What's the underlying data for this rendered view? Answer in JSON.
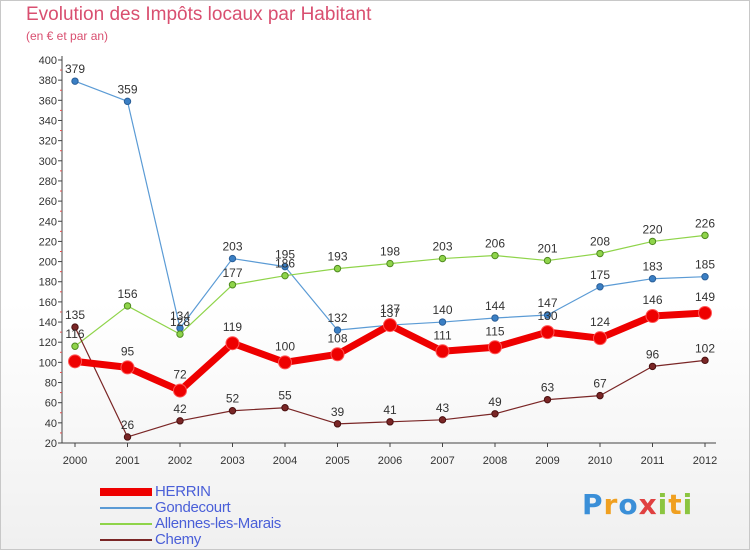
{
  "chart_data": {
    "type": "line",
    "title": "Evolution des Impôts locaux par Habitant",
    "subtitle": "(en € et par an)",
    "xlabel": "",
    "ylabel": "",
    "ylim": [
      20,
      400
    ],
    "y_ticks": [
      20,
      40,
      60,
      80,
      100,
      120,
      140,
      160,
      180,
      200,
      220,
      240,
      260,
      280,
      300,
      320,
      340,
      360,
      380,
      400
    ],
    "categories": [
      "2000",
      "2001",
      "2002",
      "2003",
      "2004",
      "2005",
      "2006",
      "2007",
      "2008",
      "2009",
      "2010",
      "2011",
      "2012"
    ],
    "series": [
      {
        "name": "Gondecourt",
        "color": "#5b9bd5",
        "values": [
          379,
          359,
          134,
          203,
          195,
          132,
          137,
          140,
          144,
          147,
          175,
          183,
          185
        ]
      },
      {
        "name": "Allennes-les-Marais",
        "color": "#8fd44a",
        "values": [
          116,
          156,
          128,
          177,
          186,
          193,
          198,
          203,
          206,
          201,
          208,
          220,
          226
        ]
      },
      {
        "name": "Chemy",
        "color": "#7a2626",
        "values": [
          135,
          26,
          42,
          52,
          55,
          39,
          41,
          43,
          49,
          63,
          67,
          96,
          102
        ]
      },
      {
        "name": "HERRIN",
        "color": "#ee0000",
        "values": [
          101,
          95,
          72,
          119,
          100,
          108,
          137,
          111,
          115,
          130,
          124,
          146,
          149
        ]
      }
    ],
    "data_labels": {
      "Gondecourt": [
        "379",
        "359",
        "134",
        "203",
        "195",
        "132",
        "137",
        "140",
        "144",
        "147",
        "175",
        "183",
        "185"
      ],
      "Allennes-les-Marais": [
        "116",
        "156",
        "128",
        "177",
        "186",
        "193",
        "198",
        "203",
        "206",
        "201",
        "208",
        "220",
        "226"
      ],
      "Chemy": [
        "135",
        "26",
        "42",
        "52",
        "55",
        "39",
        "41",
        "43",
        "49",
        "63",
        "67",
        "96",
        "102"
      ],
      "HERRIN": [
        "",
        "95",
        "72",
        "119",
        "100",
        "108",
        "137",
        "111",
        "115",
        "130",
        "124",
        "146",
        "149"
      ]
    },
    "legend": [
      "HERRIN",
      "Gondecourt",
      "Allennes-les-Marais",
      "Chemy"
    ],
    "legend_position": "bottom-left",
    "grid": false
  },
  "brand": {
    "letters": [
      "P",
      "r",
      "o",
      "x",
      "i",
      "t",
      "i"
    ],
    "colors": [
      "#3a8fd8",
      "#f0a020",
      "#3a8fd8",
      "#e04040",
      "#8bc540",
      "#f0a020",
      "#8bc540"
    ]
  }
}
